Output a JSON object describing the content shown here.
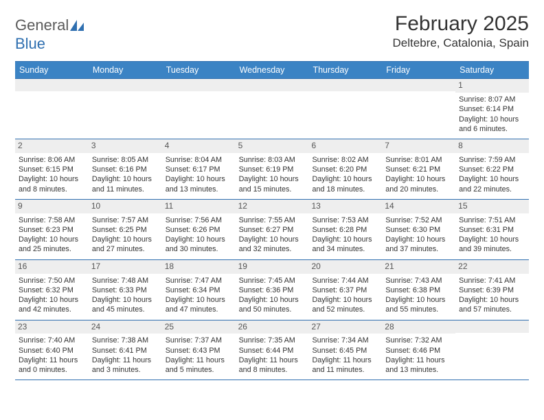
{
  "logo": {
    "word1": "General",
    "word2": "Blue",
    "word1_color": "#5a5a5a",
    "word2_color": "#2f6fb0",
    "icon_color": "#2f6fb0"
  },
  "title": "February 2025",
  "location": "Deltebre, Catalonia, Spain",
  "colors": {
    "header_bg": "#3b83c4",
    "header_text": "#ffffff",
    "border": "#2f6fb0",
    "datebar_bg": "#eeeeee",
    "text": "#333333"
  },
  "day_headers": [
    "Sunday",
    "Monday",
    "Tuesday",
    "Wednesday",
    "Thursday",
    "Friday",
    "Saturday"
  ],
  "weeks": [
    [
      {
        "date": "",
        "sunrise": "",
        "sunset": "",
        "daylight": ""
      },
      {
        "date": "",
        "sunrise": "",
        "sunset": "",
        "daylight": ""
      },
      {
        "date": "",
        "sunrise": "",
        "sunset": "",
        "daylight": ""
      },
      {
        "date": "",
        "sunrise": "",
        "sunset": "",
        "daylight": ""
      },
      {
        "date": "",
        "sunrise": "",
        "sunset": "",
        "daylight": ""
      },
      {
        "date": "",
        "sunrise": "",
        "sunset": "",
        "daylight": ""
      },
      {
        "date": "1",
        "sunrise": "Sunrise: 8:07 AM",
        "sunset": "Sunset: 6:14 PM",
        "daylight": "Daylight: 10 hours and 6 minutes."
      }
    ],
    [
      {
        "date": "2",
        "sunrise": "Sunrise: 8:06 AM",
        "sunset": "Sunset: 6:15 PM",
        "daylight": "Daylight: 10 hours and 8 minutes."
      },
      {
        "date": "3",
        "sunrise": "Sunrise: 8:05 AM",
        "sunset": "Sunset: 6:16 PM",
        "daylight": "Daylight: 10 hours and 11 minutes."
      },
      {
        "date": "4",
        "sunrise": "Sunrise: 8:04 AM",
        "sunset": "Sunset: 6:17 PM",
        "daylight": "Daylight: 10 hours and 13 minutes."
      },
      {
        "date": "5",
        "sunrise": "Sunrise: 8:03 AM",
        "sunset": "Sunset: 6:19 PM",
        "daylight": "Daylight: 10 hours and 15 minutes."
      },
      {
        "date": "6",
        "sunrise": "Sunrise: 8:02 AM",
        "sunset": "Sunset: 6:20 PM",
        "daylight": "Daylight: 10 hours and 18 minutes."
      },
      {
        "date": "7",
        "sunrise": "Sunrise: 8:01 AM",
        "sunset": "Sunset: 6:21 PM",
        "daylight": "Daylight: 10 hours and 20 minutes."
      },
      {
        "date": "8",
        "sunrise": "Sunrise: 7:59 AM",
        "sunset": "Sunset: 6:22 PM",
        "daylight": "Daylight: 10 hours and 22 minutes."
      }
    ],
    [
      {
        "date": "9",
        "sunrise": "Sunrise: 7:58 AM",
        "sunset": "Sunset: 6:23 PM",
        "daylight": "Daylight: 10 hours and 25 minutes."
      },
      {
        "date": "10",
        "sunrise": "Sunrise: 7:57 AM",
        "sunset": "Sunset: 6:25 PM",
        "daylight": "Daylight: 10 hours and 27 minutes."
      },
      {
        "date": "11",
        "sunrise": "Sunrise: 7:56 AM",
        "sunset": "Sunset: 6:26 PM",
        "daylight": "Daylight: 10 hours and 30 minutes."
      },
      {
        "date": "12",
        "sunrise": "Sunrise: 7:55 AM",
        "sunset": "Sunset: 6:27 PM",
        "daylight": "Daylight: 10 hours and 32 minutes."
      },
      {
        "date": "13",
        "sunrise": "Sunrise: 7:53 AM",
        "sunset": "Sunset: 6:28 PM",
        "daylight": "Daylight: 10 hours and 34 minutes."
      },
      {
        "date": "14",
        "sunrise": "Sunrise: 7:52 AM",
        "sunset": "Sunset: 6:30 PM",
        "daylight": "Daylight: 10 hours and 37 minutes."
      },
      {
        "date": "15",
        "sunrise": "Sunrise: 7:51 AM",
        "sunset": "Sunset: 6:31 PM",
        "daylight": "Daylight: 10 hours and 39 minutes."
      }
    ],
    [
      {
        "date": "16",
        "sunrise": "Sunrise: 7:50 AM",
        "sunset": "Sunset: 6:32 PM",
        "daylight": "Daylight: 10 hours and 42 minutes."
      },
      {
        "date": "17",
        "sunrise": "Sunrise: 7:48 AM",
        "sunset": "Sunset: 6:33 PM",
        "daylight": "Daylight: 10 hours and 45 minutes."
      },
      {
        "date": "18",
        "sunrise": "Sunrise: 7:47 AM",
        "sunset": "Sunset: 6:34 PM",
        "daylight": "Daylight: 10 hours and 47 minutes."
      },
      {
        "date": "19",
        "sunrise": "Sunrise: 7:45 AM",
        "sunset": "Sunset: 6:36 PM",
        "daylight": "Daylight: 10 hours and 50 minutes."
      },
      {
        "date": "20",
        "sunrise": "Sunrise: 7:44 AM",
        "sunset": "Sunset: 6:37 PM",
        "daylight": "Daylight: 10 hours and 52 minutes."
      },
      {
        "date": "21",
        "sunrise": "Sunrise: 7:43 AM",
        "sunset": "Sunset: 6:38 PM",
        "daylight": "Daylight: 10 hours and 55 minutes."
      },
      {
        "date": "22",
        "sunrise": "Sunrise: 7:41 AM",
        "sunset": "Sunset: 6:39 PM",
        "daylight": "Daylight: 10 hours and 57 minutes."
      }
    ],
    [
      {
        "date": "23",
        "sunrise": "Sunrise: 7:40 AM",
        "sunset": "Sunset: 6:40 PM",
        "daylight": "Daylight: 11 hours and 0 minutes."
      },
      {
        "date": "24",
        "sunrise": "Sunrise: 7:38 AM",
        "sunset": "Sunset: 6:41 PM",
        "daylight": "Daylight: 11 hours and 3 minutes."
      },
      {
        "date": "25",
        "sunrise": "Sunrise: 7:37 AM",
        "sunset": "Sunset: 6:43 PM",
        "daylight": "Daylight: 11 hours and 5 minutes."
      },
      {
        "date": "26",
        "sunrise": "Sunrise: 7:35 AM",
        "sunset": "Sunset: 6:44 PM",
        "daylight": "Daylight: 11 hours and 8 minutes."
      },
      {
        "date": "27",
        "sunrise": "Sunrise: 7:34 AM",
        "sunset": "Sunset: 6:45 PM",
        "daylight": "Daylight: 11 hours and 11 minutes."
      },
      {
        "date": "28",
        "sunrise": "Sunrise: 7:32 AM",
        "sunset": "Sunset: 6:46 PM",
        "daylight": "Daylight: 11 hours and 13 minutes."
      },
      {
        "date": "",
        "sunrise": "",
        "sunset": "",
        "daylight": ""
      }
    ]
  ]
}
